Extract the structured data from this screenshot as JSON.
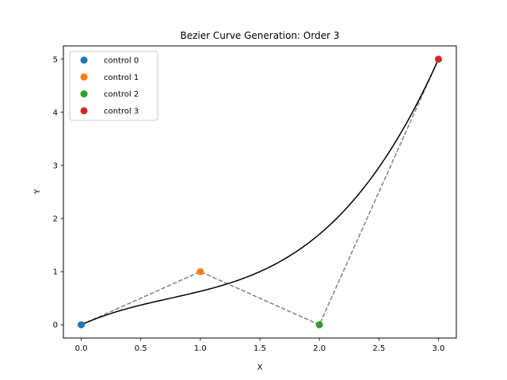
{
  "chart_data": {
    "type": "line",
    "title": "Bezier Curve Generation: Order 3",
    "xlabel": "X",
    "ylabel": "Y",
    "xlim": [
      -0.15,
      3.15
    ],
    "ylim": [
      -0.25,
      5.25
    ],
    "x_ticks": [
      "0.0",
      "0.5",
      "1.0",
      "1.5",
      "2.0",
      "2.5",
      "3.0"
    ],
    "y_ticks": [
      "0",
      "1",
      "2",
      "3",
      "4",
      "5"
    ],
    "grid": false,
    "legend_position": "top-left",
    "control_points": [
      {
        "name": "control 0",
        "x": 0,
        "y": 0,
        "color": "#1f77b4"
      },
      {
        "name": "control 1",
        "x": 1,
        "y": 1,
        "color": "#ff7f0e"
      },
      {
        "name": "control 2",
        "x": 2,
        "y": 0,
        "color": "#2ca02c"
      },
      {
        "name": "control 3",
        "x": 3,
        "y": 5,
        "color": "#d62728"
      }
    ],
    "control_polygon": {
      "style": "dashed",
      "color": "#808080"
    },
    "curve": {
      "color": "#000000",
      "order": 3
    }
  }
}
